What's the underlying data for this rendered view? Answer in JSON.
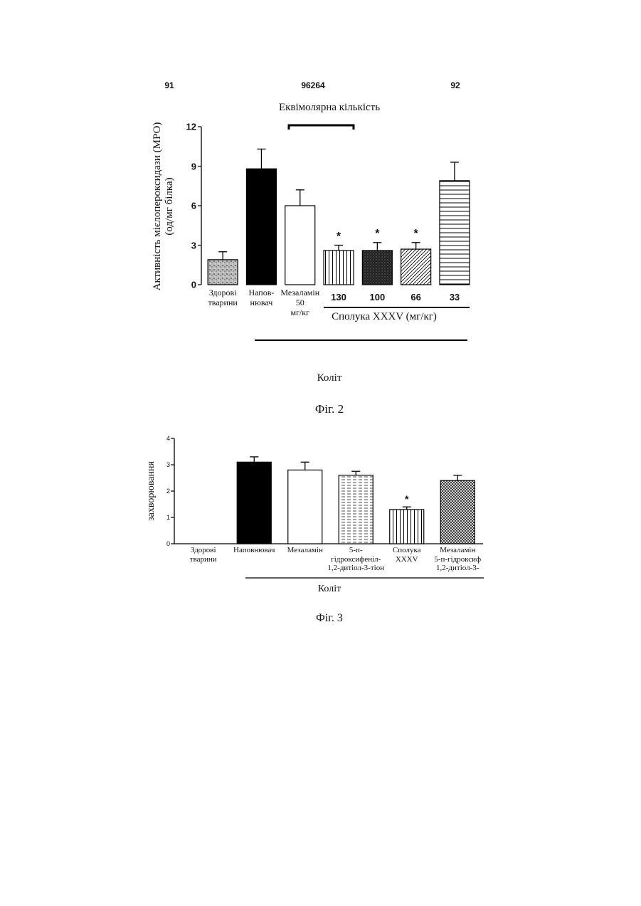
{
  "header": {
    "left": "91",
    "center": "96264",
    "right": "92"
  },
  "chart_data": [
    {
      "type": "bar",
      "y_label": "Активність мієлопероксидази (МРО)\n(од/мг білка)",
      "annotation": "Еквімолярна кількість",
      "group_label": "Сполука XXXV (мг/кг)",
      "footer": "Коліт",
      "caption": "Фіг. 2",
      "categories": [
        "Здорові\nтварини",
        "Напов-\nнювач",
        "Мезаламін\n50\nмг/кг",
        "130",
        "100",
        "66",
        "33"
      ],
      "values": [
        1.9,
        8.8,
        6.0,
        2.6,
        2.6,
        2.7,
        7.9
      ],
      "errors": [
        0.6,
        1.5,
        1.2,
        0.4,
        0.6,
        0.5,
        1.4
      ],
      "markers": [
        null,
        null,
        null,
        "*",
        "*",
        "*",
        null
      ],
      "fill_patterns": [
        "speckle",
        "solid",
        "none",
        "vertical",
        "dense",
        "diagonal",
        "horizontal"
      ],
      "ylim": [
        0,
        12
      ],
      "yticks": [
        0,
        3,
        6,
        9,
        12
      ]
    },
    {
      "type": "bar",
      "y_label": "захворювання",
      "footer": "Коліт",
      "caption": "Фіг. 3",
      "categories": [
        "Здорові\nтварини",
        "Наповнювач",
        "Мезаламін",
        "5-п-\nгідроксифеніл-\n1,2-дитіол-3-тіон",
        "Сполука\nXXXV",
        "Мезаламін\n5-п-гідроксиф\n1,2-дитіол-3-"
      ],
      "values": [
        0,
        3.1,
        2.8,
        2.6,
        1.3,
        2.4
      ],
      "errors": [
        0,
        0.2,
        0.3,
        0.15,
        0.1,
        0.2
      ],
      "markers": [
        null,
        null,
        null,
        null,
        "*",
        null
      ],
      "fill_patterns": [
        "none",
        "solid",
        "none",
        "dashed",
        "vertical",
        "cross"
      ],
      "ylim": [
        0,
        4
      ],
      "yticks": [
        0,
        1,
        2,
        3,
        4
      ]
    }
  ]
}
